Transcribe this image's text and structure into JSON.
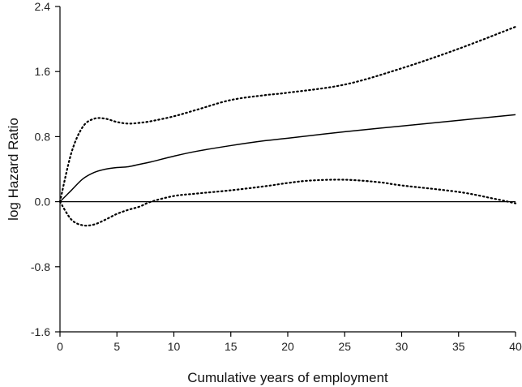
{
  "chart_data": {
    "type": "line",
    "title": "",
    "xlabel": "Cumulative years of employment",
    "ylabel": "log Hazard Ratio",
    "xlim": [
      0,
      40
    ],
    "ylim": [
      -1.6,
      2.4
    ],
    "xticks": [
      0,
      5,
      10,
      15,
      20,
      25,
      30,
      35,
      40
    ],
    "yticks": [
      -1.6,
      -0.8,
      0.0,
      0.8,
      1.6,
      2.4
    ],
    "xtick_labels": [
      "0",
      "5",
      "10",
      "15",
      "20",
      "25",
      "30",
      "35",
      "40"
    ],
    "ytick_labels": [
      "-1.6",
      "-0.8",
      "0.0",
      "0.8",
      "1.6",
      "2.4"
    ],
    "reference_line_y": 0,
    "grid": false,
    "legend": "none",
    "series": [
      {
        "style": "solid",
        "x": [
          0,
          1,
          2,
          3,
          4,
          5,
          6,
          7,
          8,
          10,
          12,
          15,
          18,
          20,
          25,
          30,
          35,
          40
        ],
        "y": [
          0.0,
          0.14,
          0.28,
          0.36,
          0.4,
          0.42,
          0.43,
          0.46,
          0.49,
          0.56,
          0.62,
          0.69,
          0.75,
          0.78,
          0.86,
          0.93,
          1.0,
          1.07
        ]
      },
      {
        "style": "dotted",
        "x": [
          0,
          1,
          2,
          3,
          4,
          5,
          6,
          7,
          8,
          10,
          12,
          15,
          18,
          20,
          25,
          30,
          35,
          40
        ],
        "y": [
          0.0,
          0.6,
          0.92,
          1.02,
          1.02,
          0.98,
          0.96,
          0.97,
          0.99,
          1.05,
          1.13,
          1.25,
          1.31,
          1.34,
          1.44,
          1.64,
          1.88,
          2.15
        ]
      },
      {
        "style": "dotted",
        "x": [
          0,
          1,
          2,
          3,
          4,
          5,
          6,
          7,
          8,
          10,
          12,
          15,
          18,
          20,
          22,
          25,
          28,
          30,
          35,
          38,
          40
        ],
        "y": [
          0.0,
          -0.22,
          -0.29,
          -0.28,
          -0.22,
          -0.15,
          -0.1,
          -0.06,
          0.0,
          0.07,
          0.1,
          0.14,
          0.19,
          0.23,
          0.26,
          0.27,
          0.24,
          0.2,
          0.12,
          0.04,
          -0.02
        ]
      }
    ]
  }
}
